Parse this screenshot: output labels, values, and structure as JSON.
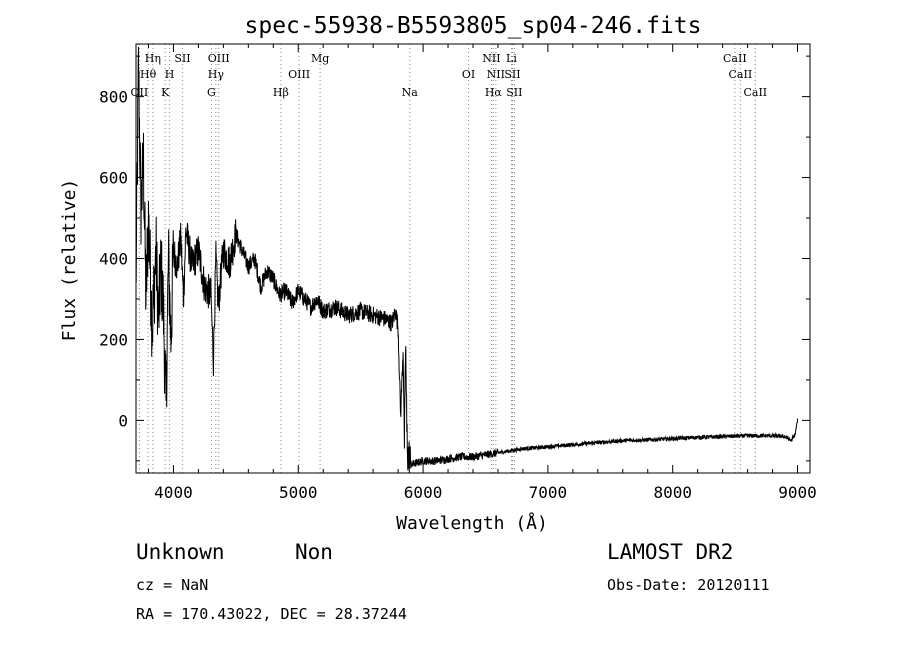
{
  "chart_data": {
    "type": "line",
    "title": "spec-55938-B5593805_sp04-246.fits",
    "xlabel": "Wavelength (Å)",
    "ylabel": "Flux (relative)",
    "xlim": [
      3700,
      9100
    ],
    "ylim": [
      -130,
      930
    ],
    "xticks": [
      4000,
      5000,
      6000,
      7000,
      8000,
      9000
    ],
    "yticks": [
      0,
      200,
      400,
      600,
      800
    ],
    "grid": false,
    "series": [
      {
        "color": "#000000",
        "x": [
          3700,
          3720,
          3740,
          3760,
          3780,
          3800,
          3830,
          3860,
          3880,
          3900,
          3920,
          3940,
          3960,
          3980,
          4000,
          4030,
          4060,
          4080,
          4100,
          4150,
          4200,
          4250,
          4300,
          4320,
          4340,
          4360,
          4380,
          4400,
          4450,
          4500,
          4550,
          4600,
          4650,
          4700,
          4750,
          4800,
          4850,
          4900,
          4950,
          5000,
          5050,
          5100,
          5150,
          5200,
          5300,
          5400,
          5500,
          5600,
          5700,
          5750,
          5780,
          5800,
          5820,
          5840,
          5850,
          5860,
          5870,
          5880,
          5900,
          6000,
          6100,
          6200,
          6300,
          6400,
          6500,
          6600,
          6700,
          6800,
          6900,
          7000,
          7200,
          7400,
          7600,
          7800,
          8000,
          8200,
          8400,
          8600,
          8800,
          8900,
          8950,
          8980,
          9000
        ],
        "y": [
          330,
          870,
          520,
          640,
          300,
          500,
          230,
          420,
          250,
          380,
          270,
          30,
          400,
          200,
          420,
          380,
          450,
          300,
          470,
          380,
          420,
          330,
          310,
          150,
          400,
          280,
          360,
          420,
          390,
          460,
          420,
          380,
          400,
          330,
          370,
          350,
          310,
          320,
          290,
          320,
          300,
          280,
          300,
          270,
          280,
          260,
          270,
          260,
          250,
          240,
          270,
          230,
          10,
          180,
          -60,
          200,
          -30,
          -90,
          -110,
          -100,
          -100,
          -95,
          -90,
          -90,
          -85,
          -80,
          -75,
          -70,
          -68,
          -65,
          -60,
          -55,
          -50,
          -48,
          -45,
          -42,
          -40,
          -38,
          -38,
          -40,
          -50,
          -35,
          0
        ]
      }
    ],
    "lines": [
      {
        "label": "Hη",
        "wavelength": 3835,
        "color": "#888888",
        "row": 1
      },
      {
        "label": "Hθ",
        "wavelength": 3797,
        "color": "#888888",
        "row": 2
      },
      {
        "label": "OII",
        "wavelength": 3727,
        "color": "#888888",
        "row": 3
      },
      {
        "label": "H",
        "wavelength": 3969,
        "color": "#888888",
        "row": 2
      },
      {
        "label": "K",
        "wavelength": 3934,
        "color": "#888888",
        "row": 3
      },
      {
        "label": "SII",
        "wavelength": 4072,
        "color": "#888888",
        "row": 1
      },
      {
        "label": "OIII",
        "wavelength": 4363,
        "color": "#888888",
        "row": 1
      },
      {
        "label": "Hγ",
        "wavelength": 4340,
        "color": "#888888",
        "row": 2
      },
      {
        "label": "G",
        "wavelength": 4304,
        "color": "#888888",
        "row": 3
      },
      {
        "label": "Hβ",
        "wavelength": 4861,
        "color": "#888888",
        "row": 3
      },
      {
        "label": "OIII",
        "wavelength": 5007,
        "color": "#888888",
        "row": 2
      },
      {
        "label": "Mg",
        "wavelength": 5175,
        "color": "#cc6666",
        "row": 1
      },
      {
        "label": "Na",
        "wavelength": 5893,
        "color": "#888888",
        "row": 3
      },
      {
        "label": "OI",
        "wavelength": 6364,
        "color": "#888888",
        "row": 2
      },
      {
        "label": "NII",
        "wavelength": 6548,
        "color": "#888888",
        "row": 1
      },
      {
        "label": "NII",
        "wavelength": 6583,
        "color": "#888888",
        "row": 2
      },
      {
        "label": "Hα",
        "wavelength": 6563,
        "color": "#cc6666",
        "row": 3
      },
      {
        "label": "Li",
        "wavelength": 6708,
        "color": "#888888",
        "row": 1
      },
      {
        "label": "SII",
        "wavelength": 6716,
        "color": "#888888",
        "row": 2
      },
      {
        "label": "SII",
        "wavelength": 6731,
        "color": "#cc6666",
        "row": 3
      },
      {
        "label": "CaII",
        "wavelength": 8498,
        "color": "#888888",
        "row": 1
      },
      {
        "label": "CaII",
        "wavelength": 8542,
        "color": "#888888",
        "row": 2
      },
      {
        "label": "CaII",
        "wavelength": 8662,
        "color": "#888888",
        "row": 3
      }
    ]
  },
  "info": {
    "class": "Unknown",
    "subclass": "Non",
    "survey": "LAMOST DR2",
    "cz": "cz = NaN",
    "obs_date": "Obs-Date: 20120111",
    "coords": "RA = 170.43022, DEC =  28.37244"
  }
}
